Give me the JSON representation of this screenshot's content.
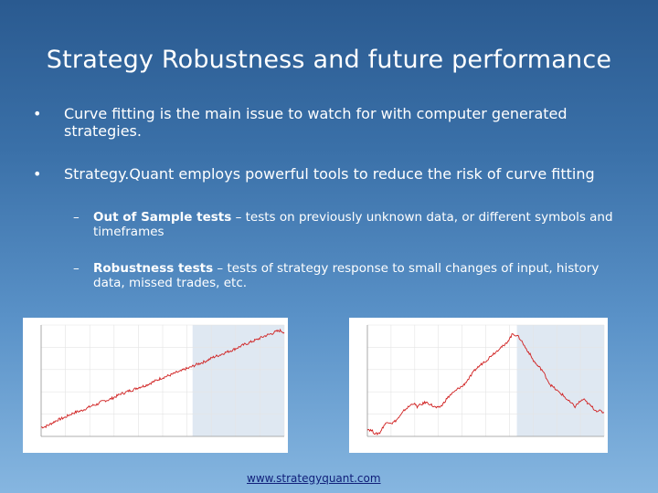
{
  "slide": {
    "title": "Strategy Robustness and future performance",
    "bullets": [
      {
        "marker": "•",
        "text": "Curve fitting is the main issue to watch for with computer generated strategies."
      },
      {
        "marker": "•",
        "text": "Strategy.Quant employs powerful tools to reduce the risk of curve fitting"
      }
    ],
    "sub_bullets": [
      {
        "marker": "–",
        "bold": "Out of Sample tests",
        "text": " – tests on previously unknown data, or different symbols and timeframes"
      },
      {
        "marker": "–",
        "bold": "Robustness tests",
        "text": " – tests of strategy response to small changes of input, history data, missed trades, etc."
      }
    ],
    "footer_link": "www.strategyquant.com"
  },
  "colors": {
    "line": "#d02020",
    "oos_shade": "#dfe8f2",
    "grid": "#e4e4e4"
  },
  "chart_data": [
    {
      "type": "line",
      "series": [
        {
          "values": [
            1000,
            1001,
            1005,
            1010,
            1015,
            1018,
            1021,
            1026,
            1030,
            1033,
            1035,
            1039,
            1043,
            1047,
            1049,
            1054,
            1057,
            1059,
            1063,
            1067,
            1072,
            1074,
            1078,
            1080,
            1084,
            1087,
            1089,
            1093,
            1097,
            1101,
            1105,
            1108,
            1111,
            1114,
            1118,
            1120,
            1125,
            1127,
            1131,
            1135,
            1138,
            1141,
            1145,
            1150,
            1153,
            1156,
            1160,
            1163,
            1166,
            1170,
            1174,
            1178,
            1181,
            1185,
            1188,
            1192,
            1196,
            1199,
            1202,
            1206,
            1208,
            1204
          ]
        }
      ],
      "oos_start": 38,
      "ylim": [
        980,
        1220
      ]
    },
    {
      "type": "line",
      "series": [
        {
          "values": [
            1000,
            998,
            993,
            995,
            1005,
            1010,
            1008,
            1012,
            1018,
            1026,
            1030,
            1035,
            1030,
            1033,
            1036,
            1034,
            1030,
            1028,
            1032,
            1040,
            1046,
            1050,
            1055,
            1058,
            1065,
            1072,
            1080,
            1085,
            1090,
            1094,
            1100,
            1104,
            1110,
            1112,
            1120,
            1128,
            1126,
            1120,
            1110,
            1102,
            1092,
            1085,
            1080,
            1070,
            1060,
            1055,
            1050,
            1046,
            1040,
            1035,
            1030,
            1036,
            1040,
            1035,
            1030,
            1025,
            1024,
            1022
          ]
        }
      ],
      "oos_start": 36,
      "ylim": [
        990,
        1140
      ]
    }
  ]
}
